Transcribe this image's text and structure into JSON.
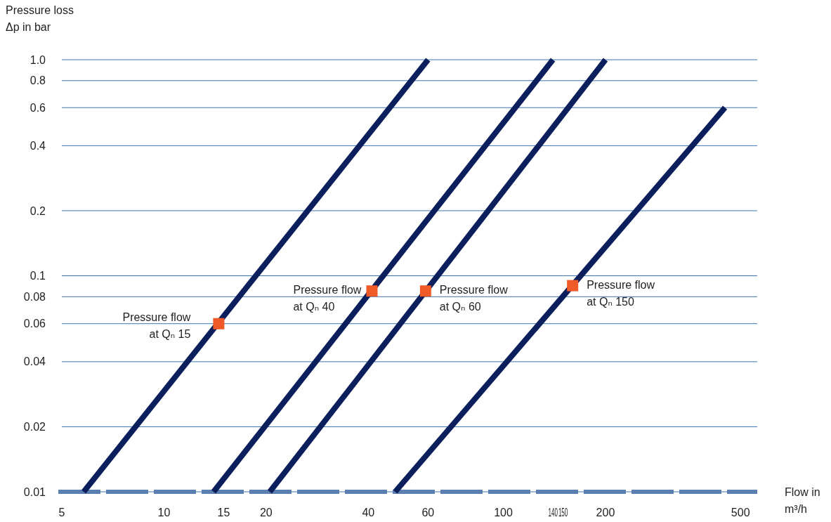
{
  "chart_data": {
    "type": "line",
    "xlabel": "Flow in\nm³/h",
    "ylabel": "Pressure loss\nΔp in bar",
    "log": "xy",
    "grid": "y",
    "xlim": [
      5,
      560
    ],
    "ylim": [
      0.01,
      1.0
    ],
    "xticks": [
      5,
      10,
      15,
      20,
      40,
      60,
      100,
      140,
      150,
      200,
      500
    ],
    "yticks": [
      0.01,
      0.02,
      0.04,
      0.06,
      0.08,
      0.1,
      0.2,
      0.4,
      0.6,
      0.8,
      {
        "value": 1.0,
        "label": "1.0"
      }
    ],
    "series": [
      {
        "color": "#0b1f5c",
        "x": [
          5.8,
          60
        ],
        "values": [
          0.01,
          1.0
        ]
      },
      {
        "color": "#0b1f5c",
        "x": [
          14,
          140
        ],
        "values": [
          0.01,
          1.0
        ]
      },
      {
        "color": "#0b1f5c",
        "x": [
          20.5,
          200
        ],
        "values": [
          0.01,
          1.0
        ]
      },
      {
        "color": "#0b1f5c",
        "x": [
          48,
          450
        ],
        "values": [
          0.01,
          0.6
        ]
      },
      {
        "type": "scatter",
        "color": "#f05a28",
        "marker": "square",
        "x": [
          14.5,
          41,
          59,
          160
        ],
        "values": [
          0.06,
          0.085,
          0.085,
          0.09
        ]
      }
    ],
    "annotations": [
      {
        "text": "Pressure flow\nat Qₙ 15",
        "x": 14.5,
        "y": 0.06
      },
      {
        "text": "Pressure flow\nat Qₙ 40",
        "x": 41,
        "y": 0.085
      },
      {
        "text": "Pressure flow\nat Qₙ 60",
        "x": 59,
        "y": 0.085
      },
      {
        "text": "Pressure flow\nat Qₙ 150",
        "x": 160,
        "y": 0.09
      }
    ]
  }
}
